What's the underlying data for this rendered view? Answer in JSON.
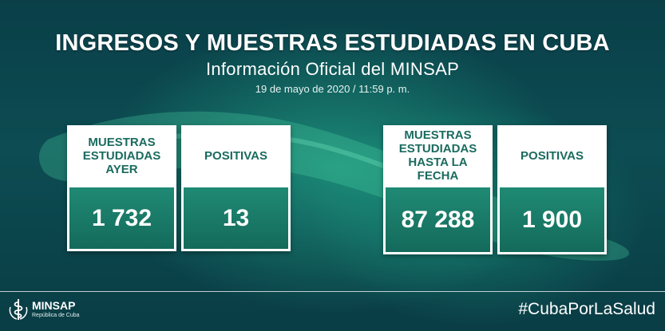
{
  "header": {
    "title": "INGRESOS Y MUESTRAS ESTUDIADAS EN CUBA",
    "subtitle": "Información Oficial del MINSAP",
    "date": "19 de mayo de 2020 / 11:59 p. m."
  },
  "cards": [
    {
      "label": "MUESTRAS\nESTUDIADAS\nAYER",
      "value": "1 732"
    },
    {
      "label": "POSITIVAS",
      "value": "13"
    },
    {
      "label": "MUESTRAS\nESTUDIADAS\nHASTA LA FECHA",
      "value": "87 288"
    },
    {
      "label": "POSITIVAS",
      "value": "1 900"
    }
  ],
  "footer": {
    "logo_name": "MINSAP",
    "logo_sub": "República de Cuba",
    "hashtag": "#CubaPorLaSalud"
  },
  "colors": {
    "background": "#0c4c52",
    "card_label": "#1a6b5f",
    "value_box": "#1f8a74"
  },
  "icons": [
    "cuba-map-silhouette",
    "minsap-emblem-icon"
  ]
}
